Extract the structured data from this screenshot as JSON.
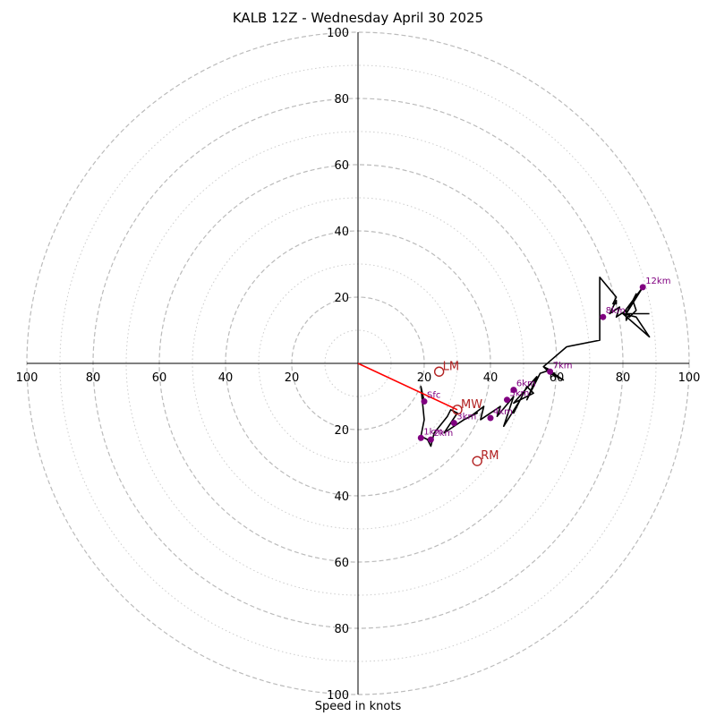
{
  "chart_data": {
    "type": "hodograph",
    "title": "KALB 12Z - Wednesday April 30 2025",
    "xlabel": "Speed in knots",
    "max_speed": 100,
    "ring_major": [
      20,
      40,
      60,
      80,
      100
    ],
    "ring_minor": [
      10,
      30,
      50,
      70,
      90
    ],
    "tick_labels": [
      "20",
      "40",
      "60",
      "80",
      "100"
    ],
    "colors": {
      "trace": "#000000",
      "heights": "#800080",
      "motion": "#b22222",
      "shear": "#ff0000",
      "grid": "#bbbbbb"
    },
    "trace": [
      [
        20,
        -11.5
      ],
      [
        19,
        -7
      ],
      [
        20,
        -17
      ],
      [
        19,
        -22
      ],
      [
        21,
        -23
      ],
      [
        22,
        -25
      ],
      [
        23,
        -21
      ],
      [
        27,
        -16
      ],
      [
        28,
        -14
      ],
      [
        30,
        -15
      ],
      [
        26,
        -21
      ],
      [
        32,
        -17
      ],
      [
        36,
        -15
      ],
      [
        34,
        -16
      ],
      [
        38,
        -13
      ],
      [
        37,
        -17
      ],
      [
        43,
        -13
      ],
      [
        42,
        -16
      ],
      [
        47,
        -10
      ],
      [
        44,
        -19
      ],
      [
        49,
        -11
      ],
      [
        47,
        -15
      ],
      [
        51,
        -7
      ],
      [
        53,
        -9
      ],
      [
        47,
        -12
      ],
      [
        54,
        -4
      ],
      [
        51,
        -11
      ],
      [
        55,
        -3
      ],
      [
        58,
        -2
      ],
      [
        56,
        -1
      ],
      [
        58,
        -3
      ],
      [
        62,
        -5
      ],
      [
        56,
        -1
      ],
      [
        63,
        5
      ],
      [
        73,
        7
      ],
      [
        73,
        26
      ],
      [
        78,
        20
      ],
      [
        77,
        18
      ],
      [
        78,
        18
      ],
      [
        78,
        19
      ],
      [
        76,
        15
      ],
      [
        79,
        17
      ],
      [
        78,
        14
      ],
      [
        81,
        16
      ],
      [
        81,
        13
      ],
      [
        82,
        15
      ],
      [
        82,
        14
      ],
      [
        84,
        16
      ],
      [
        83,
        19
      ],
      [
        84,
        21
      ],
      [
        81,
        15
      ],
      [
        86,
        23
      ],
      [
        86,
        23
      ],
      [
        80,
        15
      ],
      [
        88,
        8
      ],
      [
        84,
        14
      ],
      [
        80,
        15
      ],
      [
        88,
        15
      ]
    ],
    "height_points": [
      {
        "label": "Sfc",
        "u": 20,
        "v": -11.5
      },
      {
        "label": "1km",
        "u": 19,
        "v": -22.5
      },
      {
        "label": "2km",
        "u": 22,
        "v": -23
      },
      {
        "label": "3km",
        "u": 29,
        "v": -18
      },
      {
        "label": "4km",
        "u": 40,
        "v": -16.5
      },
      {
        "label": "5km",
        "u": 45,
        "v": -11
      },
      {
        "label": "6km",
        "u": 47,
        "v": -8
      },
      {
        "label": "7km",
        "u": 58,
        "v": -2.5
      },
      {
        "label": "8km",
        "u": 74,
        "v": 14
      },
      {
        "label": "12km",
        "u": 86,
        "v": 23
      }
    ],
    "storm_motion": [
      {
        "label": "LM",
        "u": 24.5,
        "v": -2.5
      },
      {
        "label": "MW",
        "u": 30,
        "v": -14
      },
      {
        "label": "RM",
        "u": 36,
        "v": -29.5
      }
    ],
    "shear_vector": {
      "from": [
        0,
        0
      ],
      "to": [
        30,
        -14
      ]
    }
  }
}
